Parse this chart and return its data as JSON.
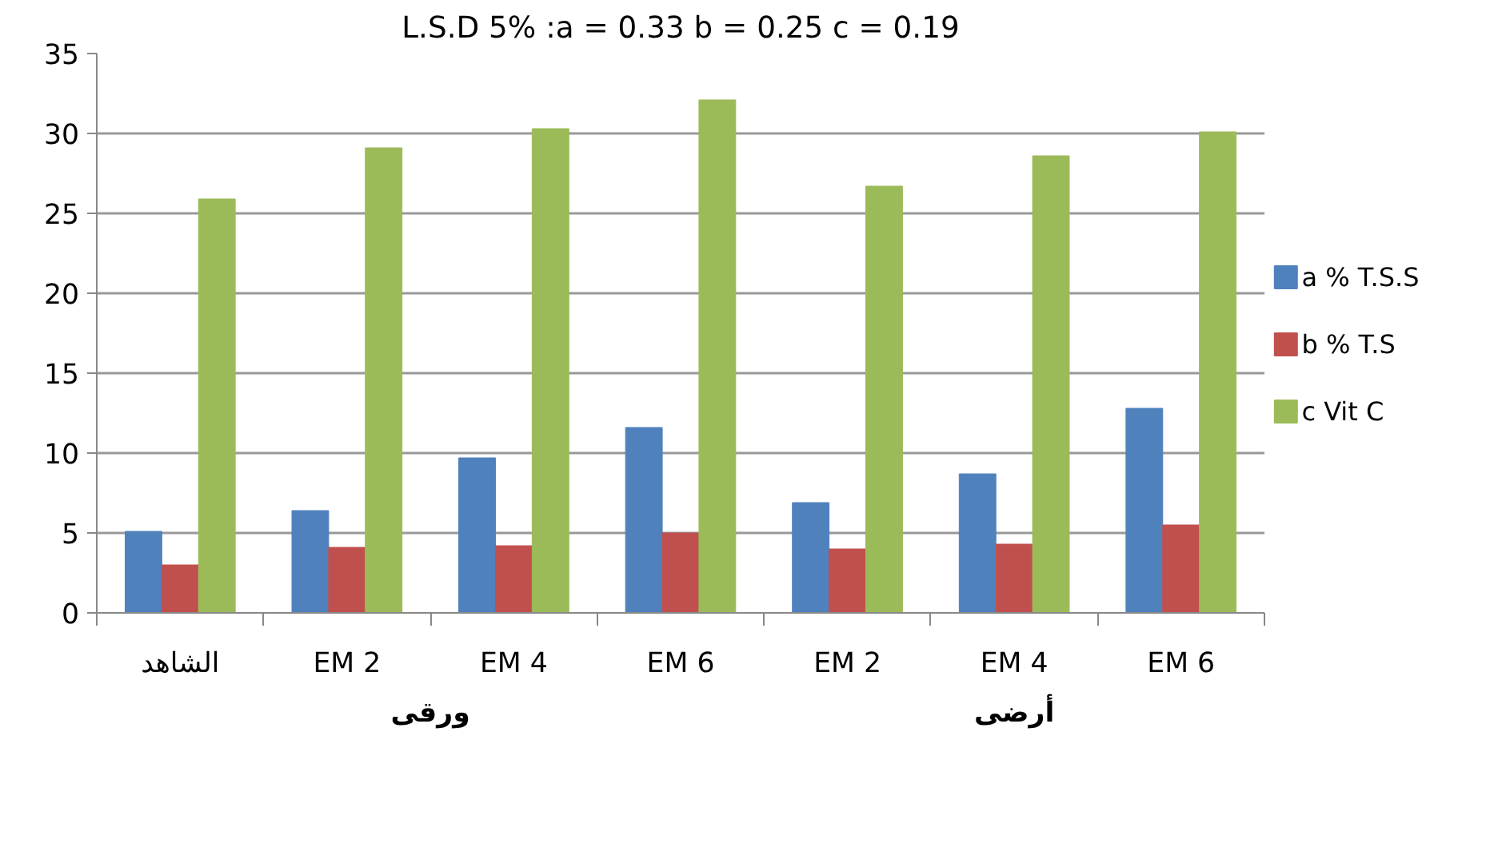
{
  "chart_data": {
    "type": "bar",
    "title": "L.S.D 5% :a = 0.33 b = 0.25 c = 0.19",
    "categories": [
      "الشاهد",
      "EM 2",
      "EM 4",
      "EM 6",
      "EM 2",
      "EM 4",
      "EM 6"
    ],
    "series": [
      {
        "name": " a % T.S.S",
        "color": "#4f81bd",
        "values": [
          5.1,
          6.4,
          9.7,
          11.6,
          6.9,
          8.7,
          12.8
        ]
      },
      {
        "name": "b % T.S",
        "color": "#c0504d",
        "values": [
          3.0,
          4.1,
          4.2,
          5.0,
          4.0,
          4.3,
          5.5
        ]
      },
      {
        "name": "c Vit C",
        "color": "#9bbb59",
        "values": [
          25.9,
          29.1,
          30.3,
          32.1,
          26.7,
          28.6,
          30.1
        ]
      }
    ],
    "ylim": [
      0,
      35
    ],
    "yticks": [
      0,
      5,
      10,
      15,
      20,
      25,
      30,
      35
    ],
    "grid": "y",
    "legend": "right",
    "annotations": [
      "ورقى",
      "أرضى"
    ]
  }
}
